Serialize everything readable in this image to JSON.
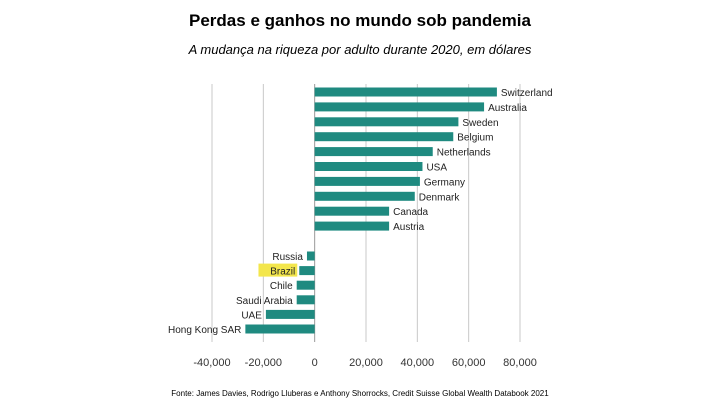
{
  "title": "Perdas e ganhos no mundo sob pandemia",
  "subtitle": "A mudança na riqueza por adulto durante 2020, em dólares",
  "source": "Fonte: James Davies, Rodrigo Lluberas e Anthony Shorrocks, Credit Suisse Global Wealth Databook 2021",
  "colors": {
    "bar": "#1f8a80",
    "highlight": "#f3e64c",
    "grid": "#c8c8c8"
  },
  "chart_data": {
    "type": "bar",
    "orientation": "horizontal",
    "title": "Perdas e ganhos no mundo sob pandemia",
    "subtitle": "A mudança na riqueza por adulto durante 2020, em dólares",
    "categories": [
      "Switzerland",
      "Australia",
      "Sweden",
      "Belgium",
      "Netherlands",
      "USA",
      "Germany",
      "Denmark",
      "Canada",
      "Austria",
      "Russia",
      "Brazil",
      "Chile",
      "Saudi Arabia",
      "UAE",
      "Hong Kong SAR"
    ],
    "values": [
      71000,
      66000,
      56000,
      54000,
      46000,
      42000,
      41000,
      39000,
      29000,
      29000,
      -3000,
      -6000,
      -7000,
      -7000,
      -19000,
      -27000
    ],
    "highlighted": [
      "Brazil"
    ],
    "xlim": [
      -40000,
      80000
    ],
    "xticks": [
      -40000,
      -20000,
      0,
      20000,
      40000,
      60000,
      80000
    ],
    "xtick_labels": [
      "-40,000",
      "-20,000",
      "0",
      "20,000",
      "40,000",
      "60,000",
      "80,000"
    ],
    "grid": "vertical",
    "xlabel": "",
    "ylabel": ""
  }
}
